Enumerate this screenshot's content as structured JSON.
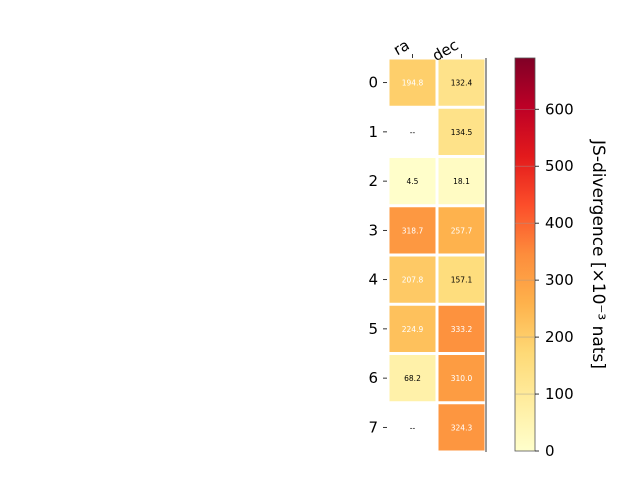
{
  "chart_data": {
    "type": "heatmap",
    "columns": [
      "ra",
      "dec"
    ],
    "rows": [
      "0",
      "1",
      "2",
      "3",
      "4",
      "5",
      "6",
      "7"
    ],
    "values": [
      [
        194.8,
        132.4
      ],
      [
        null,
        134.5
      ],
      [
        4.5,
        18.1
      ],
      [
        318.7,
        257.7
      ],
      [
        207.8,
        157.1
      ],
      [
        224.9,
        333.2
      ],
      [
        68.2,
        310.0
      ],
      [
        null,
        324.3
      ]
    ],
    "labels": [
      [
        "194.8",
        "132.4"
      ],
      [
        "--",
        "134.5"
      ],
      [
        "4.5",
        "18.1"
      ],
      [
        "318.7",
        "257.7"
      ],
      [
        "207.8",
        "157.1"
      ],
      [
        "224.9",
        "333.2"
      ],
      [
        "68.2",
        "310.0"
      ],
      [
        "--",
        "324.3"
      ]
    ],
    "missing_label": "--",
    "colorbar": {
      "label": "JS-divergence [×10⁻³ nats]",
      "min": 0,
      "max": 690,
      "ticks": [
        0,
        100,
        200,
        300,
        400,
        500,
        600
      ],
      "tick_labels": [
        "0",
        "100",
        "200",
        "300",
        "400",
        "500",
        "600"
      ],
      "colormap": "YlOrRd",
      "stops": [
        "#ffffcc",
        "#ffeda0",
        "#fed976",
        "#feb24c",
        "#fd8d3c",
        "#fc4e2a",
        "#e31a1c",
        "#bd0026",
        "#800026"
      ]
    }
  }
}
